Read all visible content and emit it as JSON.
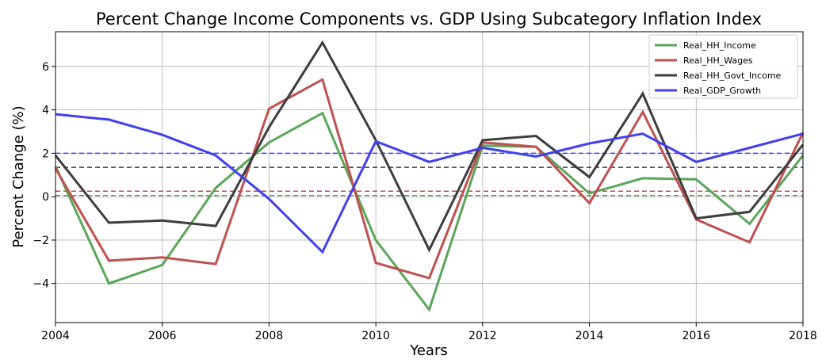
{
  "chart_data": {
    "type": "line",
    "title": "Percent Change Income Components vs. GDP Using Subcategory Inflation Index",
    "xlabel": "Years",
    "ylabel": "Percent Change (%)",
    "xlim": [
      2004,
      2018
    ],
    "ylim": [
      -5.8,
      7.6
    ],
    "xticks": [
      2004,
      2006,
      2008,
      2010,
      2012,
      2014,
      2016,
      2018
    ],
    "yticks": [
      -4,
      -2,
      0,
      2,
      4,
      6
    ],
    "grid": true,
    "legend_position": "top-right",
    "x": [
      2004,
      2005,
      2006,
      2007,
      2008,
      2009,
      2010,
      2011,
      2012,
      2013,
      2014,
      2015,
      2016,
      2017,
      2018
    ],
    "series": [
      {
        "name": "Real_HH_Income",
        "color": "#5aa55a",
        "values": [
          1.4,
          -4.0,
          -3.15,
          0.4,
          2.5,
          3.85,
          -2.0,
          -5.2,
          2.35,
          2.3,
          0.15,
          0.85,
          0.8,
          -1.25,
          1.9
        ],
        "mean": 0.05
      },
      {
        "name": "Real_HH_Wages",
        "color": "#c05050",
        "values": [
          1.3,
          -2.95,
          -2.8,
          -3.1,
          4.05,
          5.4,
          -3.05,
          -3.75,
          2.5,
          2.3,
          -0.3,
          3.9,
          -1.05,
          -2.1,
          2.95
        ],
        "mean": 0.25
      },
      {
        "name": "Real_HH_Govt_Income",
        "color": "#3d3d3d",
        "values": [
          1.9,
          -1.2,
          -1.1,
          -1.35,
          3.2,
          7.1,
          2.6,
          -2.45,
          2.6,
          2.8,
          0.9,
          4.75,
          -1.0,
          -0.7,
          2.4
        ],
        "mean": 1.35
      },
      {
        "name": "Real_GDP_Growth",
        "color": "#4040f0",
        "values": [
          3.8,
          3.55,
          2.85,
          1.9,
          -0.1,
          -2.55,
          2.55,
          1.6,
          2.25,
          1.85,
          2.45,
          2.9,
          1.6,
          2.25,
          2.9
        ],
        "mean": 2.0
      }
    ]
  }
}
